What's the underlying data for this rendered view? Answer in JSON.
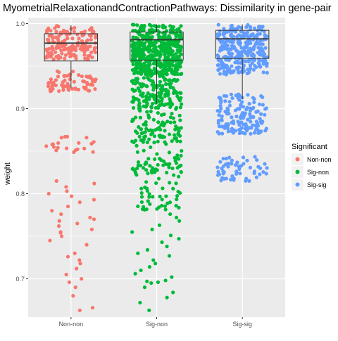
{
  "chart_data": {
    "type": "box",
    "title": "MyometrialRelaxationandContractionPathways: Dissimilarity in gene-pair",
    "xlabel": "",
    "ylabel": "weight",
    "categories": [
      "Non-non",
      "Sig-non",
      "Sig-sig"
    ],
    "ylim": [
      0.655,
      1.007
    ],
    "yticks": [
      0.7,
      0.8,
      0.9,
      1.0
    ],
    "ytick_labels": [
      "0.7",
      "0.8",
      "0.9",
      "1.0"
    ],
    "grid": true,
    "legend": {
      "title": "Significant",
      "placement": "right",
      "entries": [
        "Non-non",
        "Sig-non",
        "Sig-sig"
      ]
    },
    "colors": {
      "Non-non": "#f8766d",
      "Sig-non": "#00ba38",
      "Sig-sig": "#619cff",
      "panel_background": "#ebebeb",
      "grid": "#ffffff"
    },
    "boxes": [
      {
        "category": "Non-non",
        "q1": 0.956,
        "median": 0.977,
        "q3": 0.988,
        "whisker_low": 0.924,
        "whisker_high": 0.998
      },
      {
        "category": "Sig-non",
        "q1": 0.957,
        "median": 0.981,
        "q3": 0.99,
        "whisker_low": 0.906,
        "whisker_high": 0.999
      },
      {
        "category": "Sig-sig",
        "q1": 0.959,
        "median": 0.982,
        "q3": 0.992,
        "whisker_low": 0.911,
        "whisker_high": 0.999
      }
    ],
    "points": {
      "Non-non": {
        "dense_bands": [
          {
            "from": 0.958,
            "to": 0.998,
            "count": 160
          },
          {
            "from": 0.92,
            "to": 0.944,
            "count": 70
          },
          {
            "from": 0.848,
            "to": 0.868,
            "count": 20
          }
        ],
        "sparse": [
          0.815,
          0.812,
          0.808,
          0.803,
          0.8,
          0.797,
          0.793,
          0.79,
          0.785,
          0.78,
          0.776,
          0.772,
          0.77,
          0.768,
          0.765,
          0.762,
          0.758,
          0.755,
          0.754,
          0.75,
          0.745,
          0.74,
          0.73,
          0.726,
          0.722,
          0.718,
          0.712,
          0.705,
          0.7,
          0.696,
          0.69,
          0.68,
          0.666,
          0.663
        ]
      },
      "Sig-non": {
        "dense_bands": [
          {
            "from": 0.94,
            "to": 0.999,
            "count": 500
          },
          {
            "from": 0.9,
            "to": 0.94,
            "count": 160
          },
          {
            "from": 0.86,
            "to": 0.9,
            "count": 90
          },
          {
            "from": 0.82,
            "to": 0.86,
            "count": 60
          },
          {
            "from": 0.78,
            "to": 0.82,
            "count": 40
          }
        ],
        "sparse": [
          0.776,
          0.772,
          0.768,
          0.763,
          0.758,
          0.755,
          0.751,
          0.747,
          0.743,
          0.738,
          0.734,
          0.73,
          0.727,
          0.722,
          0.718,
          0.714,
          0.71,
          0.706,
          0.702,
          0.698,
          0.697,
          0.696,
          0.695,
          0.69,
          0.684,
          0.678,
          0.672,
          0.663
        ]
      },
      "Sig-sig": {
        "dense_bands": [
          {
            "from": 0.94,
            "to": 0.999,
            "count": 300
          },
          {
            "from": 0.87,
            "to": 0.918,
            "count": 150
          },
          {
            "from": 0.815,
            "to": 0.847,
            "count": 55
          }
        ],
        "sparse": []
      }
    }
  }
}
